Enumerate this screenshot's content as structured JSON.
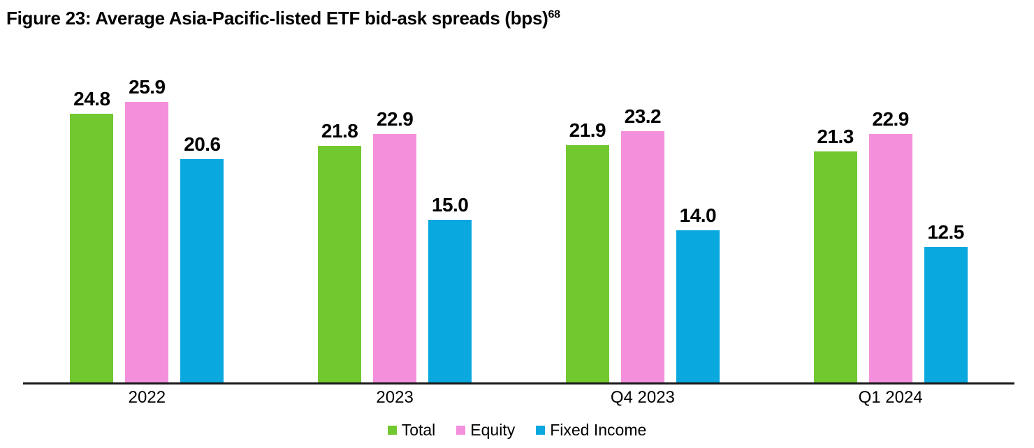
{
  "figure": {
    "title": "Figure 23: Average Asia-Pacific-listed ETF bid-ask spreads (bps)",
    "title_superscript": "68"
  },
  "chart_data": {
    "type": "bar",
    "title": "Figure 23: Average Asia-Pacific-listed ETF bid-ask spreads (bps)",
    "title_footnote_ref": "68",
    "categories": [
      "2022",
      "2023",
      "Q4 2023",
      "Q1 2024"
    ],
    "series": [
      {
        "name": "Total",
        "color": "#72C82F",
        "values": [
          24.8,
          21.8,
          21.9,
          21.3
        ]
      },
      {
        "name": "Equity",
        "color": "#F48FDC",
        "values": [
          25.9,
          22.9,
          23.2,
          22.9
        ]
      },
      {
        "name": "Fixed Income",
        "color": "#09A8DF",
        "values": [
          20.6,
          15.0,
          14.0,
          12.5
        ]
      }
    ],
    "value_labels_shown": true,
    "value_label_format": "0.0",
    "xlabel": "",
    "ylabel": "",
    "ylim": [
      0,
      29.8
    ],
    "grid": false,
    "y_axis_shown": false,
    "axis_line_color": "#1a1a1a",
    "legend_position": "bottom"
  }
}
